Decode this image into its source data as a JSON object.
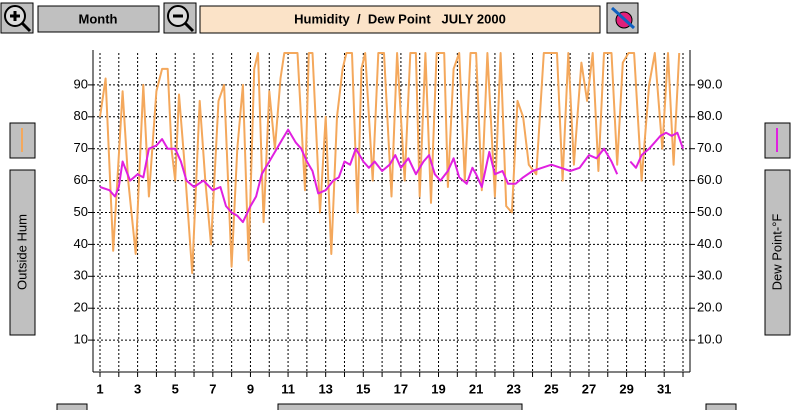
{
  "toolbar": {
    "period": "Month"
  },
  "chart_data": {
    "type": "line",
    "title": "Humidity  /  Dew Point   JULY 2000",
    "xlim": [
      1,
      32
    ],
    "xticks": [
      1,
      3,
      5,
      7,
      9,
      11,
      13,
      15,
      17,
      19,
      21,
      23,
      25,
      27,
      29,
      31
    ],
    "xgrid": [
      1,
      2,
      3,
      4,
      5,
      6,
      7,
      8,
      9,
      10,
      11,
      12,
      13,
      14,
      15,
      16,
      17,
      18,
      19,
      20,
      21,
      22,
      23,
      24,
      25,
      26,
      27,
      28,
      29,
      30,
      31,
      32
    ],
    "ylim": [
      0,
      100
    ],
    "yticks": [
      10,
      20,
      30,
      40,
      50,
      60,
      70,
      80,
      90
    ],
    "y2lim": [
      0,
      100
    ],
    "y2ticks": [
      {
        "value": 10,
        "label": "10.0"
      },
      {
        "value": 20,
        "label": "20.0"
      },
      {
        "value": 30,
        "label": "30.0"
      },
      {
        "value": 40,
        "label": "40.0"
      },
      {
        "value": 50,
        "label": "50.0"
      },
      {
        "value": 60,
        "label": "60.0"
      },
      {
        "value": 70,
        "label": "70.0"
      },
      {
        "value": 80,
        "label": "80.0"
      },
      {
        "value": 90,
        "label": "90.0"
      }
    ],
    "grid": true,
    "series": [
      {
        "name": "Outside Hum",
        "color": "#f4a85c",
        "x": [
          1.0,
          1.3,
          1.7,
          2.2,
          2.5,
          2.9,
          3.3,
          3.6,
          4.0,
          4.3,
          4.6,
          4.8,
          5.0,
          5.2,
          5.5,
          5.9,
          6.3,
          6.6,
          6.9,
          7.3,
          7.6,
          8.0,
          8.3,
          8.6,
          8.9,
          9.2,
          9.4,
          9.7,
          10.0,
          10.3,
          10.6,
          10.8,
          11.2,
          11.5,
          11.9,
          12.1,
          12.3,
          12.7,
          13.0,
          13.3,
          13.6,
          13.9,
          14.1,
          14.4,
          14.7,
          14.9,
          15.1,
          15.5,
          15.8,
          16.1,
          16.5,
          16.8,
          17.2,
          17.5,
          17.8,
          18.0,
          18.3,
          18.6,
          18.9,
          19.3,
          19.5,
          19.8,
          20.1,
          20.4,
          20.7,
          21.0,
          21.3,
          21.6,
          22.0,
          22.3,
          22.6,
          22.9,
          23.2,
          23.5,
          23.8,
          24.2,
          24.6,
          25.0,
          25.3,
          25.6,
          25.9,
          26.2,
          26.6,
          26.9,
          27.2,
          27.5,
          27.8,
          28.2,
          28.5,
          28.8,
          29.1,
          29.4,
          29.8,
          30.2,
          30.5,
          30.9,
          31.2,
          31.5,
          31.8
        ],
        "values": [
          80,
          92,
          38,
          88,
          60,
          37,
          90,
          55,
          88,
          95,
          95,
          70,
          60,
          87,
          65,
          31,
          85,
          60,
          40,
          85,
          90,
          33,
          70,
          90,
          35,
          95,
          100,
          47,
          88,
          70,
          92,
          100,
          100,
          100,
          57,
          100,
          100,
          50,
          80,
          37,
          80,
          95,
          100,
          100,
          50,
          95,
          100,
          60,
          100,
          100,
          55,
          100,
          60,
          100,
          100,
          55,
          100,
          53,
          100,
          100,
          58,
          95,
          100,
          60,
          100,
          100,
          57,
          100,
          55,
          100,
          52,
          50,
          85,
          80,
          65,
          62,
          100,
          100,
          100,
          60,
          100,
          65,
          97,
          85,
          100,
          63,
          100,
          100,
          65,
          97,
          100,
          100,
          60,
          90,
          100,
          70,
          100,
          65,
          100
        ]
      },
      {
        "name": "Dew Point-°F",
        "color": "#e020e0",
        "axis": "y2",
        "x": [
          1.0,
          1.5,
          1.8,
          2.0,
          2.2,
          2.6,
          3.0,
          3.3,
          3.6,
          4.0,
          4.3,
          4.6,
          5.0,
          5.3,
          5.6,
          6.0,
          6.5,
          7.0,
          7.4,
          7.7,
          8.0,
          8.3,
          8.6,
          9.0,
          9.3,
          9.6,
          10.0,
          10.4,
          10.7,
          11.0,
          11.4,
          11.7,
          12.0,
          12.3,
          12.6,
          13.0,
          13.4,
          13.7,
          14.0,
          14.3,
          14.6,
          15.0,
          15.3,
          15.6,
          16.0,
          16.4,
          16.7,
          17.0,
          17.4,
          17.8,
          18.2,
          18.5,
          18.8,
          19.1,
          19.5,
          19.8,
          20.1,
          20.5,
          20.8,
          21.0,
          21.3,
          21.7,
          22.0,
          22.4,
          22.7,
          23.1,
          23.5,
          24.0,
          24.5,
          25.0,
          25.5,
          26.0,
          26.5,
          27.0,
          27.4,
          27.8,
          28.2,
          28.5,
          29.0,
          29.2,
          29.5,
          29.8,
          30.2,
          30.5,
          30.8,
          31.1,
          31.4,
          31.7,
          32.0
        ],
        "values": [
          58,
          57,
          55,
          58,
          66,
          60,
          62,
          61,
          70,
          71,
          73,
          70,
          70,
          66,
          60,
          58,
          60,
          57,
          58,
          52,
          50,
          49,
          47,
          52,
          55,
          62,
          66,
          70,
          73,
          76,
          72,
          70,
          66,
          63,
          56,
          57,
          60,
          61,
          66,
          65,
          70,
          66,
          64,
          66,
          63,
          65,
          68,
          64,
          67,
          62,
          66,
          68,
          62,
          60,
          63,
          67,
          61,
          59,
          64,
          62,
          58,
          69,
          62,
          63,
          59,
          59,
          61,
          63,
          64,
          65,
          64,
          63,
          64,
          68,
          67,
          70,
          66,
          62,
          null,
          66,
          64,
          68,
          70,
          72,
          74,
          75,
          74,
          75,
          70
        ]
      }
    ]
  }
}
